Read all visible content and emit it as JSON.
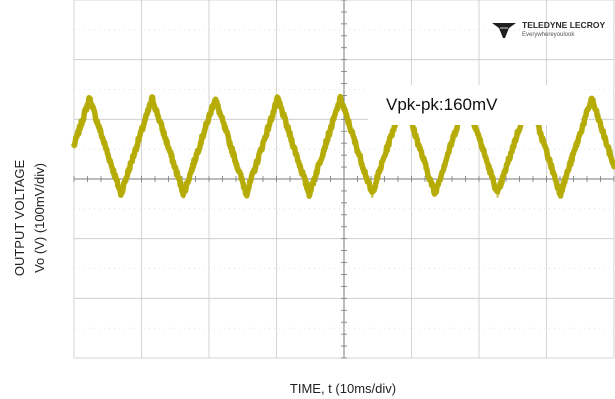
{
  "chart_data": {
    "type": "line",
    "title": "",
    "xlabel": "TIME, t (10ms/div)",
    "ylabel": "OUTPUT VOLTAGE",
    "ylabel_line2": "Vo (V) (100mV/div)",
    "annotation": "Vpk-pk:160mV",
    "logo": {
      "name": "TELEDYNE LECROY",
      "tagline": "Everywhereyoulook"
    },
    "grid": true,
    "x_divisions": 8,
    "y_divisions": 6,
    "x_range_ms": [
      0,
      80
    ],
    "y_range_mV": [
      -300,
      300
    ],
    "series": [
      {
        "color": "#b3aa00",
        "waveform": "triangle",
        "period_ms": 9.3,
        "first_peak_ms": 2.3,
        "peak_to_peak_mV": 160,
        "offset_mV": 55
      }
    ]
  }
}
